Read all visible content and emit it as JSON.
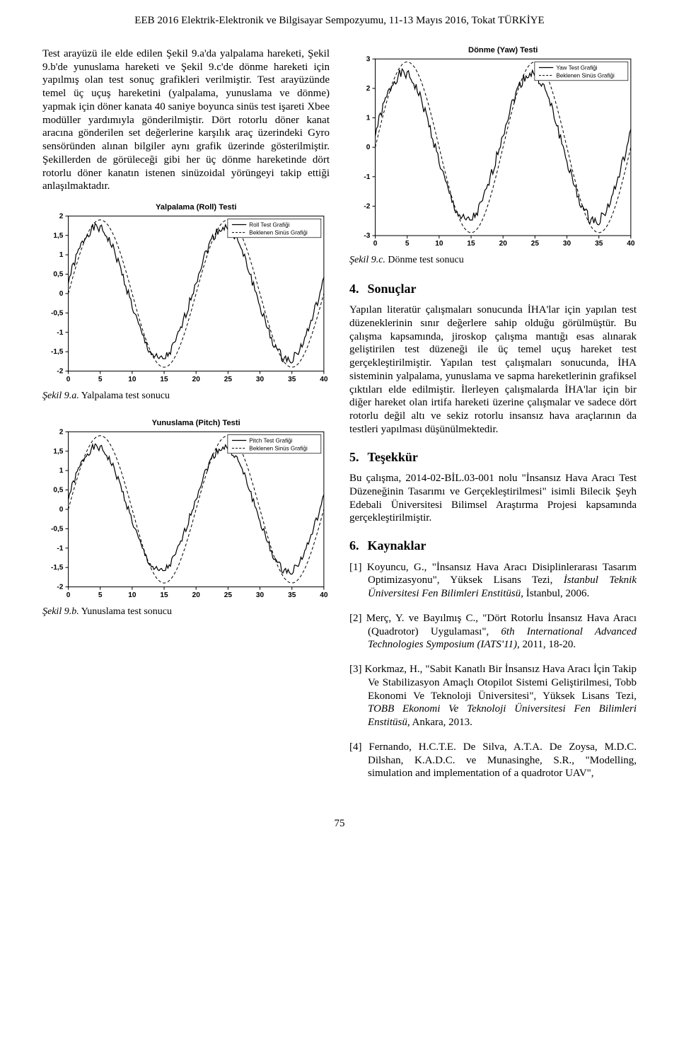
{
  "header": "EEB 2016 Elektrik-Elektronik ve Bilgisayar Sempozyumu, 11-13 Mayıs 2016, Tokat TÜRKİYE",
  "page_number": "75",
  "left_col": {
    "para1": "Test arayüzü ile elde edilen Şekil 9.a'da yalpalama hareketi, Şekil 9.b'de yunuslama hareketi ve Şekil 9.c'de dönme hareketi için yapılmış olan test sonuç grafikleri verilmiştir. Test arayüzünde temel üç uçuş hareketini (yalpalama, yunuslama ve dönme) yapmak için döner kanata 40 saniye boyunca sinüs test işareti Xbee modüller yardımıyla gönderilmiştir. Dört rotorlu döner kanat aracına gönderilen set değerlerine karşılık araç üzerindeki Gyro sensöründen alınan bilgiler aynı grafik üzerinde gösterilmiştir. Şekillerden de görüleceği gibi her üç dönme hareketinde dört rotorlu döner kanatın istenen sinüzoidal yörüngeyi takip ettiği anlaşılmaktadır.",
    "chart_roll": {
      "title": "Yalpalama (Roll) Testi",
      "legend_a": "Roll Test Grafiği",
      "legend_b": "Beklenen Sinüs Grafiği",
      "xlim": [
        0,
        40
      ],
      "ylim": [
        -2,
        2
      ],
      "xticks": [
        0,
        5,
        10,
        15,
        20,
        25,
        30,
        35,
        40
      ],
      "yticks": [
        -2,
        -1.5,
        -1,
        -0.5,
        0,
        0.5,
        1,
        1.5,
        2
      ],
      "title_fontsize": 11,
      "tick_fontsize": 10,
      "line_color": "#000000",
      "dash_color": "#000000",
      "background": "#ffffff",
      "axis_color": "#000000",
      "amp_expected": 1.9,
      "amp_actual": 1.7,
      "period": 20,
      "noise": 0.12
    },
    "caption_roll_it": "Şekil 9.a.",
    "caption_roll_txt": " Yalpalama test sonucu",
    "chart_pitch": {
      "title": "Yunuslama (Pitch) Testi",
      "legend_a": "Pitch Test Grafiği",
      "legend_b": "Beklenen Sinüs Grafiği",
      "xlim": [
        0,
        40
      ],
      "ylim": [
        -2,
        2
      ],
      "xticks": [
        0,
        5,
        10,
        15,
        20,
        25,
        30,
        35,
        40
      ],
      "yticks": [
        -2,
        -1.5,
        -1,
        -0.5,
        0,
        0.5,
        1,
        1.5,
        2
      ],
      "title_fontsize": 11,
      "tick_fontsize": 10,
      "line_color": "#000000",
      "dash_color": "#000000",
      "background": "#ffffff",
      "axis_color": "#000000",
      "amp_expected": 1.9,
      "amp_actual": 1.6,
      "period": 20,
      "noise": 0.1
    },
    "caption_pitch_it": "Şekil 9.b.",
    "caption_pitch_txt": " Yunuslama test sonucu"
  },
  "right_col": {
    "chart_yaw": {
      "title": "Dönme (Yaw) Testi",
      "legend_a": "Yaw Test Grafiği",
      "legend_b": "Beklenen Sinüs Grafiği",
      "xlim": [
        0,
        40
      ],
      "ylim": [
        -3,
        3
      ],
      "xticks": [
        0,
        5,
        10,
        15,
        20,
        25,
        30,
        35,
        40
      ],
      "yticks": [
        -3,
        -2,
        -1,
        0,
        1,
        2,
        3
      ],
      "title_fontsize": 11,
      "tick_fontsize": 10,
      "line_color": "#000000",
      "dash_color": "#000000",
      "background": "#ffffff",
      "axis_color": "#000000",
      "amp_expected": 2.9,
      "amp_actual": 2.5,
      "period": 20,
      "noise": 0.18
    },
    "caption_yaw_it": "Şekil 9.c.",
    "caption_yaw_txt": " Dönme test sonucu",
    "sec4_num": "4.",
    "sec4_title": "Sonuçlar",
    "sec4_para": "Yapılan literatür çalışmaları sonucunda İHA'lar için yapılan test düzeneklerinin sınır değerlere sahip olduğu görülmüştür. Bu çalışma kapsamında, jiroskop çalışma mantığı esas alınarak geliştirilen test düzeneği ile üç temel uçuş hareket test gerçekleştirilmiştir. Yapılan test çalışmaları sonucunda, İHA sisteminin yalpalama, yunuslama ve sapma hareketlerinin grafiksel çıktıları elde edilmiştir. İlerleyen çalışmalarda İHA'lar için bir diğer hareket olan irtifa hareketi üzerine çalışmalar ve sadece dört rotorlu değil altı ve sekiz rotorlu insansız hava araçlarının da testleri yapılması düşünülmektedir.",
    "sec5_num": "5.",
    "sec5_title": "Teşekkür",
    "sec5_para_a": "Bu çalışma, 2014-02-BİL.03-001 nolu \"",
    "sec5_para_it": "İnsansız Hava Aracı Test Düzeneğinin Tasarımı ve Gerçekleştirilmesi",
    "sec5_para_b": "\" isimli Bilecik Şeyh Edebali Üniversitesi Bilimsel Araştırma Projesi kapsamında gerçekleştirilmiştir.",
    "sec6_num": "6.",
    "sec6_title": "Kaynaklar",
    "ref1_a": "[1] Koyuncu, G., \"İnsansız Hava Aracı Disiplinlerarası Tasarım Optimizasyonu\", Yüksek Lisans Tezi, ",
    "ref1_it": "İstanbul Teknik Üniversitesi Fen Bilimleri Enstitüsü",
    "ref1_b": ", İstanbul, 2006.",
    "ref2_a": "[2] Merç, Y. ve Bayılmış C., \"Dört Rotorlu İnsansız Hava Aracı (Quadrotor) Uygulaması\", ",
    "ref2_it": "6th International Advanced Technologies Symposium (IATS'11)",
    "ref2_b": ", 2011, 18-20.",
    "ref3_a": "[3] Korkmaz, H., \"Sabit Kanatlı Bir İnsansız Hava Aracı İçin Takip Ve Stabilizasyon Amaçlı Otopilot Sistemi Geliştirilmesi, Tobb Ekonomi Ve Teknoloji Üniversitesi\", Yüksek Lisans Tezi, ",
    "ref3_it": "TOBB Ekonomi Ve Teknoloji Üniversitesi Fen Bilimleri Enstitüsü",
    "ref3_b": ", Ankara, 2013.",
    "ref4_a": "[4] Fernando, H.C.T.E. De Silva, A.T.A. De Zoysa, M.D.C. Dilshan, K.A.D.C. ve Munasinghe, S.R., \"Modelling, simulation and implementation of a quadrotor UAV\","
  }
}
